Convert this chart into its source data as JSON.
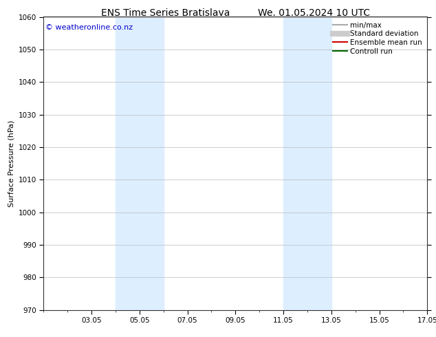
{
  "title_left": "ENS Time Series Bratislava",
  "title_right": "We. 01.05.2024 10 UTC",
  "ylabel": "Surface Pressure (hPa)",
  "ylim": [
    970,
    1060
  ],
  "yticks": [
    970,
    980,
    990,
    1000,
    1010,
    1020,
    1030,
    1040,
    1050,
    1060
  ],
  "xlim": [
    0,
    16
  ],
  "xtick_labels": [
    "03.05",
    "05.05",
    "07.05",
    "09.05",
    "11.05",
    "13.05",
    "15.05",
    "17.05"
  ],
  "xtick_positions": [
    2,
    4,
    6,
    8,
    10,
    12,
    14,
    16
  ],
  "shade_bands": [
    {
      "xmin": 3.0,
      "xmax": 5.0,
      "color": "#ddeeff",
      "alpha": 1.0
    },
    {
      "xmin": 10.0,
      "xmax": 12.0,
      "color": "#ddeeff",
      "alpha": 1.0
    }
  ],
  "watermark": "© weatheronline.co.nz",
  "watermark_color": "#0000cc",
  "legend_entries": [
    {
      "label": "min/max",
      "color": "#aaaaaa",
      "lw": 1.5
    },
    {
      "label": "Standard deviation",
      "color": "#cccccc",
      "lw": 6
    },
    {
      "label": "Ensemble mean run",
      "color": "#cc0000",
      "lw": 1.5
    },
    {
      "label": "Controll run",
      "color": "#006600",
      "lw": 1.5
    }
  ],
  "bg_color": "#ffffff",
  "grid_color": "#bbbbbb",
  "title_fontsize": 10,
  "tick_fontsize": 7.5,
  "ylabel_fontsize": 8,
  "legend_fontsize": 7.5,
  "watermark_fontsize": 8
}
